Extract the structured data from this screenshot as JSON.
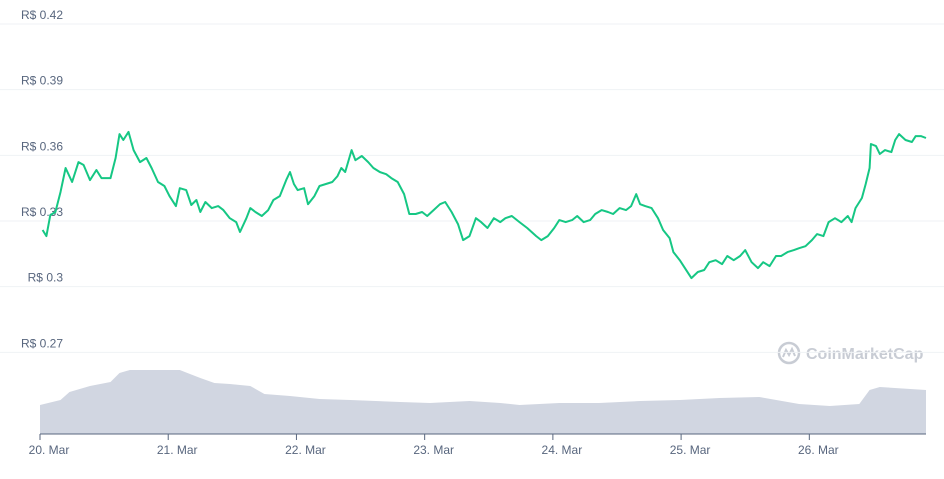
{
  "chart_data": {
    "type": "line",
    "watermark": "CoinMarketCap",
    "color": "#16c784",
    "x": [
      20.02,
      20.05,
      20.08,
      20.12,
      20.16,
      20.2,
      20.25,
      20.3,
      20.34,
      20.39,
      20.44,
      20.48,
      20.55,
      20.59,
      20.62,
      20.65,
      20.69,
      20.73,
      20.78,
      20.83,
      20.87,
      20.92,
      20.97,
      21.01,
      21.06,
      21.09,
      21.14,
      21.18,
      21.22,
      21.25,
      21.29,
      21.34,
      21.39,
      21.43,
      21.48,
      21.53,
      21.56,
      21.61,
      21.64,
      21.68,
      21.73,
      21.78,
      21.82,
      21.87,
      21.92,
      21.95,
      21.98,
      22.01,
      22.06,
      22.09,
      22.14,
      22.18,
      22.23,
      22.28,
      22.32,
      22.35,
      22.38,
      22.43,
      22.46,
      22.51,
      22.56,
      22.6,
      22.65,
      22.7,
      22.74,
      22.79,
      22.84,
      22.88,
      22.93,
      22.98,
      23.02,
      23.07,
      23.12,
      23.16,
      23.21,
      23.26,
      23.3,
      23.35,
      23.4,
      23.44,
      23.49,
      23.54,
      23.59,
      23.63,
      23.68,
      23.74,
      23.8,
      23.87,
      23.91,
      23.96,
      24.01,
      24.05,
      24.1,
      24.15,
      24.19,
      24.24,
      24.29,
      24.33,
      24.38,
      24.43,
      24.47,
      24.52,
      24.57,
      24.61,
      24.65,
      24.68,
      24.72,
      24.77,
      24.82,
      24.86,
      24.91,
      24.94,
      24.99,
      25.03,
      25.08,
      25.13,
      25.18,
      25.22,
      25.27,
      25.32,
      25.36,
      25.41,
      25.46,
      25.5,
      25.55,
      25.6,
      25.64,
      25.69,
      25.74,
      25.78,
      25.83,
      25.88,
      25.92,
      25.97,
      26.02,
      26.06,
      26.11,
      26.15,
      26.2,
      26.25,
      26.3,
      26.33,
      26.36,
      26.41,
      26.44,
      26.47,
      26.48,
      26.52,
      26.55,
      26.59,
      26.64,
      26.67,
      26.7,
      26.75,
      26.8,
      26.83,
      26.87,
      26.91
    ],
    "values": [
      0.3259,
      0.3231,
      0.3327,
      0.3341,
      0.3432,
      0.3542,
      0.3478,
      0.3569,
      0.3556,
      0.3487,
      0.3533,
      0.3496,
      0.3496,
      0.3588,
      0.3697,
      0.367,
      0.3707,
      0.3624,
      0.3569,
      0.3588,
      0.3542,
      0.3478,
      0.346,
      0.3414,
      0.3368,
      0.345,
      0.3441,
      0.3373,
      0.3396,
      0.3341,
      0.3387,
      0.3359,
      0.3368,
      0.335,
      0.3313,
      0.3295,
      0.325,
      0.3313,
      0.3359,
      0.3341,
      0.3323,
      0.335,
      0.3396,
      0.3414,
      0.3487,
      0.3524,
      0.3469,
      0.3441,
      0.345,
      0.3377,
      0.3414,
      0.346,
      0.3469,
      0.3478,
      0.3505,
      0.3542,
      0.3524,
      0.3624,
      0.3578,
      0.3597,
      0.3569,
      0.3542,
      0.3524,
      0.3514,
      0.3496,
      0.3478,
      0.3423,
      0.3332,
      0.3332,
      0.3341,
      0.3323,
      0.335,
      0.3377,
      0.3387,
      0.3341,
      0.3286,
      0.3213,
      0.3231,
      0.3313,
      0.3295,
      0.3268,
      0.3313,
      0.3295,
      0.3313,
      0.3323,
      0.3295,
      0.3268,
      0.3231,
      0.3213,
      0.3231,
      0.3268,
      0.3304,
      0.3295,
      0.3304,
      0.3323,
      0.3295,
      0.3304,
      0.3332,
      0.335,
      0.3341,
      0.3332,
      0.3359,
      0.335,
      0.3368,
      0.3423,
      0.3377,
      0.3368,
      0.3359,
      0.3313,
      0.3259,
      0.3222,
      0.3158,
      0.3121,
      0.3085,
      0.3039,
      0.3067,
      0.3076,
      0.3112,
      0.3121,
      0.3103,
      0.314,
      0.3121,
      0.314,
      0.3167,
      0.3112,
      0.3085,
      0.3112,
      0.3094,
      0.314,
      0.314,
      0.3158,
      0.3167,
      0.3176,
      0.3185,
      0.3213,
      0.324,
      0.3231,
      0.3295,
      0.3313,
      0.3295,
      0.3323,
      0.3295,
      0.3359,
      0.3405,
      0.3469,
      0.3542,
      0.3652,
      0.3642,
      0.3606,
      0.3624,
      0.3615,
      0.367,
      0.3697,
      0.367,
      0.3661,
      0.3688,
      0.3688,
      0.3679
    ],
    "volume": {
      "axis": "y2",
      "color": "#d1d6e1",
      "x": [
        20.0,
        20.16,
        20.23,
        20.39,
        20.55,
        20.62,
        20.7,
        21.09,
        21.17,
        21.25,
        21.36,
        21.48,
        21.64,
        21.75,
        21.95,
        22.18,
        22.42,
        22.81,
        23.04,
        23.35,
        23.59,
        23.74,
        24.05,
        24.36,
        24.68,
        24.99,
        25.3,
        25.61,
        25.92,
        26.16,
        26.39,
        26.47,
        26.55,
        26.91
      ],
      "values": [
        35.4,
        41.5,
        51.2,
        58.5,
        63.4,
        74.4,
        78.0,
        78.0,
        73.2,
        68.3,
        62.2,
        61.0,
        58.5,
        48.8,
        46.3,
        42.7,
        41.5,
        39.0,
        37.8,
        40.2,
        37.8,
        35.4,
        37.8,
        37.8,
        40.2,
        41.5,
        43.9,
        45.1,
        36.6,
        34.1,
        36.6,
        53.7,
        57.3,
        53.7
      ]
    },
    "xlim": [
      20,
      26.91
    ],
    "xticks": [
      {
        "value": 20,
        "label": "20. Mar"
      },
      {
        "value": 21,
        "label": "21. Mar"
      },
      {
        "value": 22,
        "label": "22. Mar"
      },
      {
        "value": 23,
        "label": "23. Mar"
      },
      {
        "value": 24,
        "label": "24. Mar"
      },
      {
        "value": 25,
        "label": "25. Mar"
      },
      {
        "value": 26,
        "label": "26. Mar"
      }
    ],
    "ylim": [
      0.2327,
      0.42
    ],
    "yticks": [
      {
        "value": 0.27,
        "label": "R$ 0.27"
      },
      {
        "value": 0.3,
        "label": "R$ 0.3"
      },
      {
        "value": 0.33,
        "label": "R$ 0.33"
      },
      {
        "value": 0.36,
        "label": "R$ 0.36"
      },
      {
        "value": 0.39,
        "label": "R$ 0.39"
      },
      {
        "value": 0.42,
        "label": "R$ 0.42"
      }
    ],
    "y2lim": [
      0,
      100
    ],
    "grid": true
  }
}
